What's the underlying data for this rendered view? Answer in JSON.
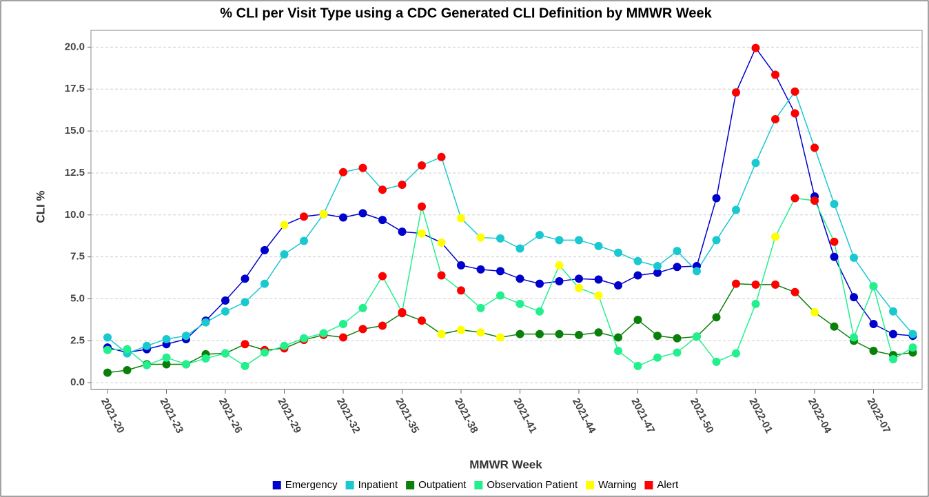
{
  "chart_data": {
    "type": "line",
    "title": "% CLI per Visit Type using a CDC Generated CLI Definition by MMWR Week",
    "x_label": "MMWR Week",
    "y_label": "CLI %",
    "categories": [
      "2021-20",
      null,
      null,
      "2021-23",
      null,
      null,
      "2021-26",
      null,
      null,
      "2021-29",
      null,
      null,
      "2021-32",
      null,
      null,
      "2021-35",
      null,
      null,
      "2021-38",
      null,
      null,
      "2021-41",
      null,
      null,
      "2021-44",
      null,
      null,
      "2021-47",
      null,
      null,
      "2021-50",
      null,
      null,
      "2022-01",
      null,
      null,
      "2022-04",
      null,
      null,
      "2022-07",
      null,
      null
    ],
    "ylim": [
      -0.4,
      21
    ],
    "yticks": [
      {
        "value": 0,
        "label": "0.0"
      },
      2.5,
      {
        "value": 5,
        "label": "5.0"
      },
      7.5,
      {
        "value": 10,
        "label": "10.0"
      },
      12.5,
      {
        "value": 15,
        "label": "15.0"
      },
      17.5,
      {
        "value": 20,
        "label": "20.0"
      }
    ],
    "grid": true,
    "status_markers": [
      {
        "name": "Warning",
        "color": "#ffff00"
      },
      {
        "name": "Alert",
        "color": "#ff0000"
      }
    ],
    "series": [
      {
        "name": "Emergency",
        "color": "#0000cc",
        "values": [
          2.1,
          1.8,
          2.0,
          2.3,
          2.6,
          3.7,
          4.9,
          6.2,
          7.9,
          9.4,
          9.9,
          10.05,
          9.85,
          10.1,
          9.7,
          9.0,
          8.9,
          8.35,
          7.0,
          6.75,
          6.65,
          6.2,
          5.9,
          6.05,
          6.2,
          6.15,
          5.8,
          6.4,
          6.55,
          6.9,
          6.95,
          11.0,
          17.3,
          19.95,
          18.35,
          16.05,
          11.1,
          7.5,
          5.1,
          3.5,
          2.9,
          2.8
        ],
        "warning": [
          9,
          16,
          17
        ],
        "alert": [
          10,
          32,
          33,
          34,
          35
        ]
      },
      {
        "name": "Inpatient",
        "color": "#1ac8d0",
        "values": [
          2.7,
          1.75,
          2.2,
          2.6,
          2.8,
          3.6,
          4.25,
          4.8,
          5.9,
          7.65,
          8.45,
          10.05,
          12.55,
          12.8,
          11.5,
          11.8,
          12.95,
          13.45,
          9.8,
          8.65,
          8.6,
          8.0,
          8.8,
          8.5,
          8.5,
          8.15,
          7.75,
          7.25,
          6.95,
          7.85,
          6.65,
          8.5,
          10.3,
          13.1,
          15.7,
          17.35,
          14.0,
          10.65,
          7.45,
          5.75,
          4.25,
          2.9
        ],
        "warning": [
          11,
          18,
          19
        ],
        "alert": [
          12,
          13,
          14,
          15,
          16,
          17,
          34,
          35,
          36
        ]
      },
      {
        "name": "Outpatient",
        "color": "#0a800a",
        "values": [
          0.6,
          0.75,
          1.1,
          1.1,
          1.1,
          1.7,
          1.75,
          2.3,
          1.95,
          2.05,
          2.55,
          2.85,
          2.7,
          3.2,
          3.4,
          4.15,
          3.7,
          2.9,
          3.15,
          3.0,
          2.7,
          2.9,
          2.9,
          2.9,
          2.85,
          3.0,
          2.7,
          3.75,
          2.8,
          2.65,
          2.75,
          3.9,
          5.9,
          5.85,
          5.85,
          5.4,
          4.2,
          3.35,
          2.5,
          1.9,
          1.65,
          1.8
        ],
        "warning": [
          17,
          18,
          19,
          20,
          36
        ],
        "alert": [
          7,
          8,
          9,
          10,
          11,
          12,
          13,
          14,
          15,
          16,
          32,
          33,
          34,
          35
        ]
      },
      {
        "name": "Observation Patient",
        "color": "#22f08c",
        "values": [
          1.95,
          2.0,
          1.05,
          1.5,
          1.1,
          1.45,
          1.75,
          1.0,
          1.8,
          2.2,
          2.65,
          2.95,
          3.5,
          4.45,
          6.35,
          4.2,
          10.5,
          6.4,
          5.5,
          4.45,
          5.2,
          4.7,
          4.25,
          7.0,
          5.65,
          5.2,
          1.9,
          1.0,
          1.5,
          1.8,
          2.75,
          1.25,
          1.75,
          4.7,
          8.7,
          11.0,
          10.85,
          8.4,
          2.7,
          5.75,
          1.4,
          2.1
        ],
        "warning": [
          23,
          24,
          25,
          34
        ],
        "alert": [
          14,
          15,
          16,
          17,
          18,
          35,
          36,
          37
        ]
      }
    ]
  }
}
